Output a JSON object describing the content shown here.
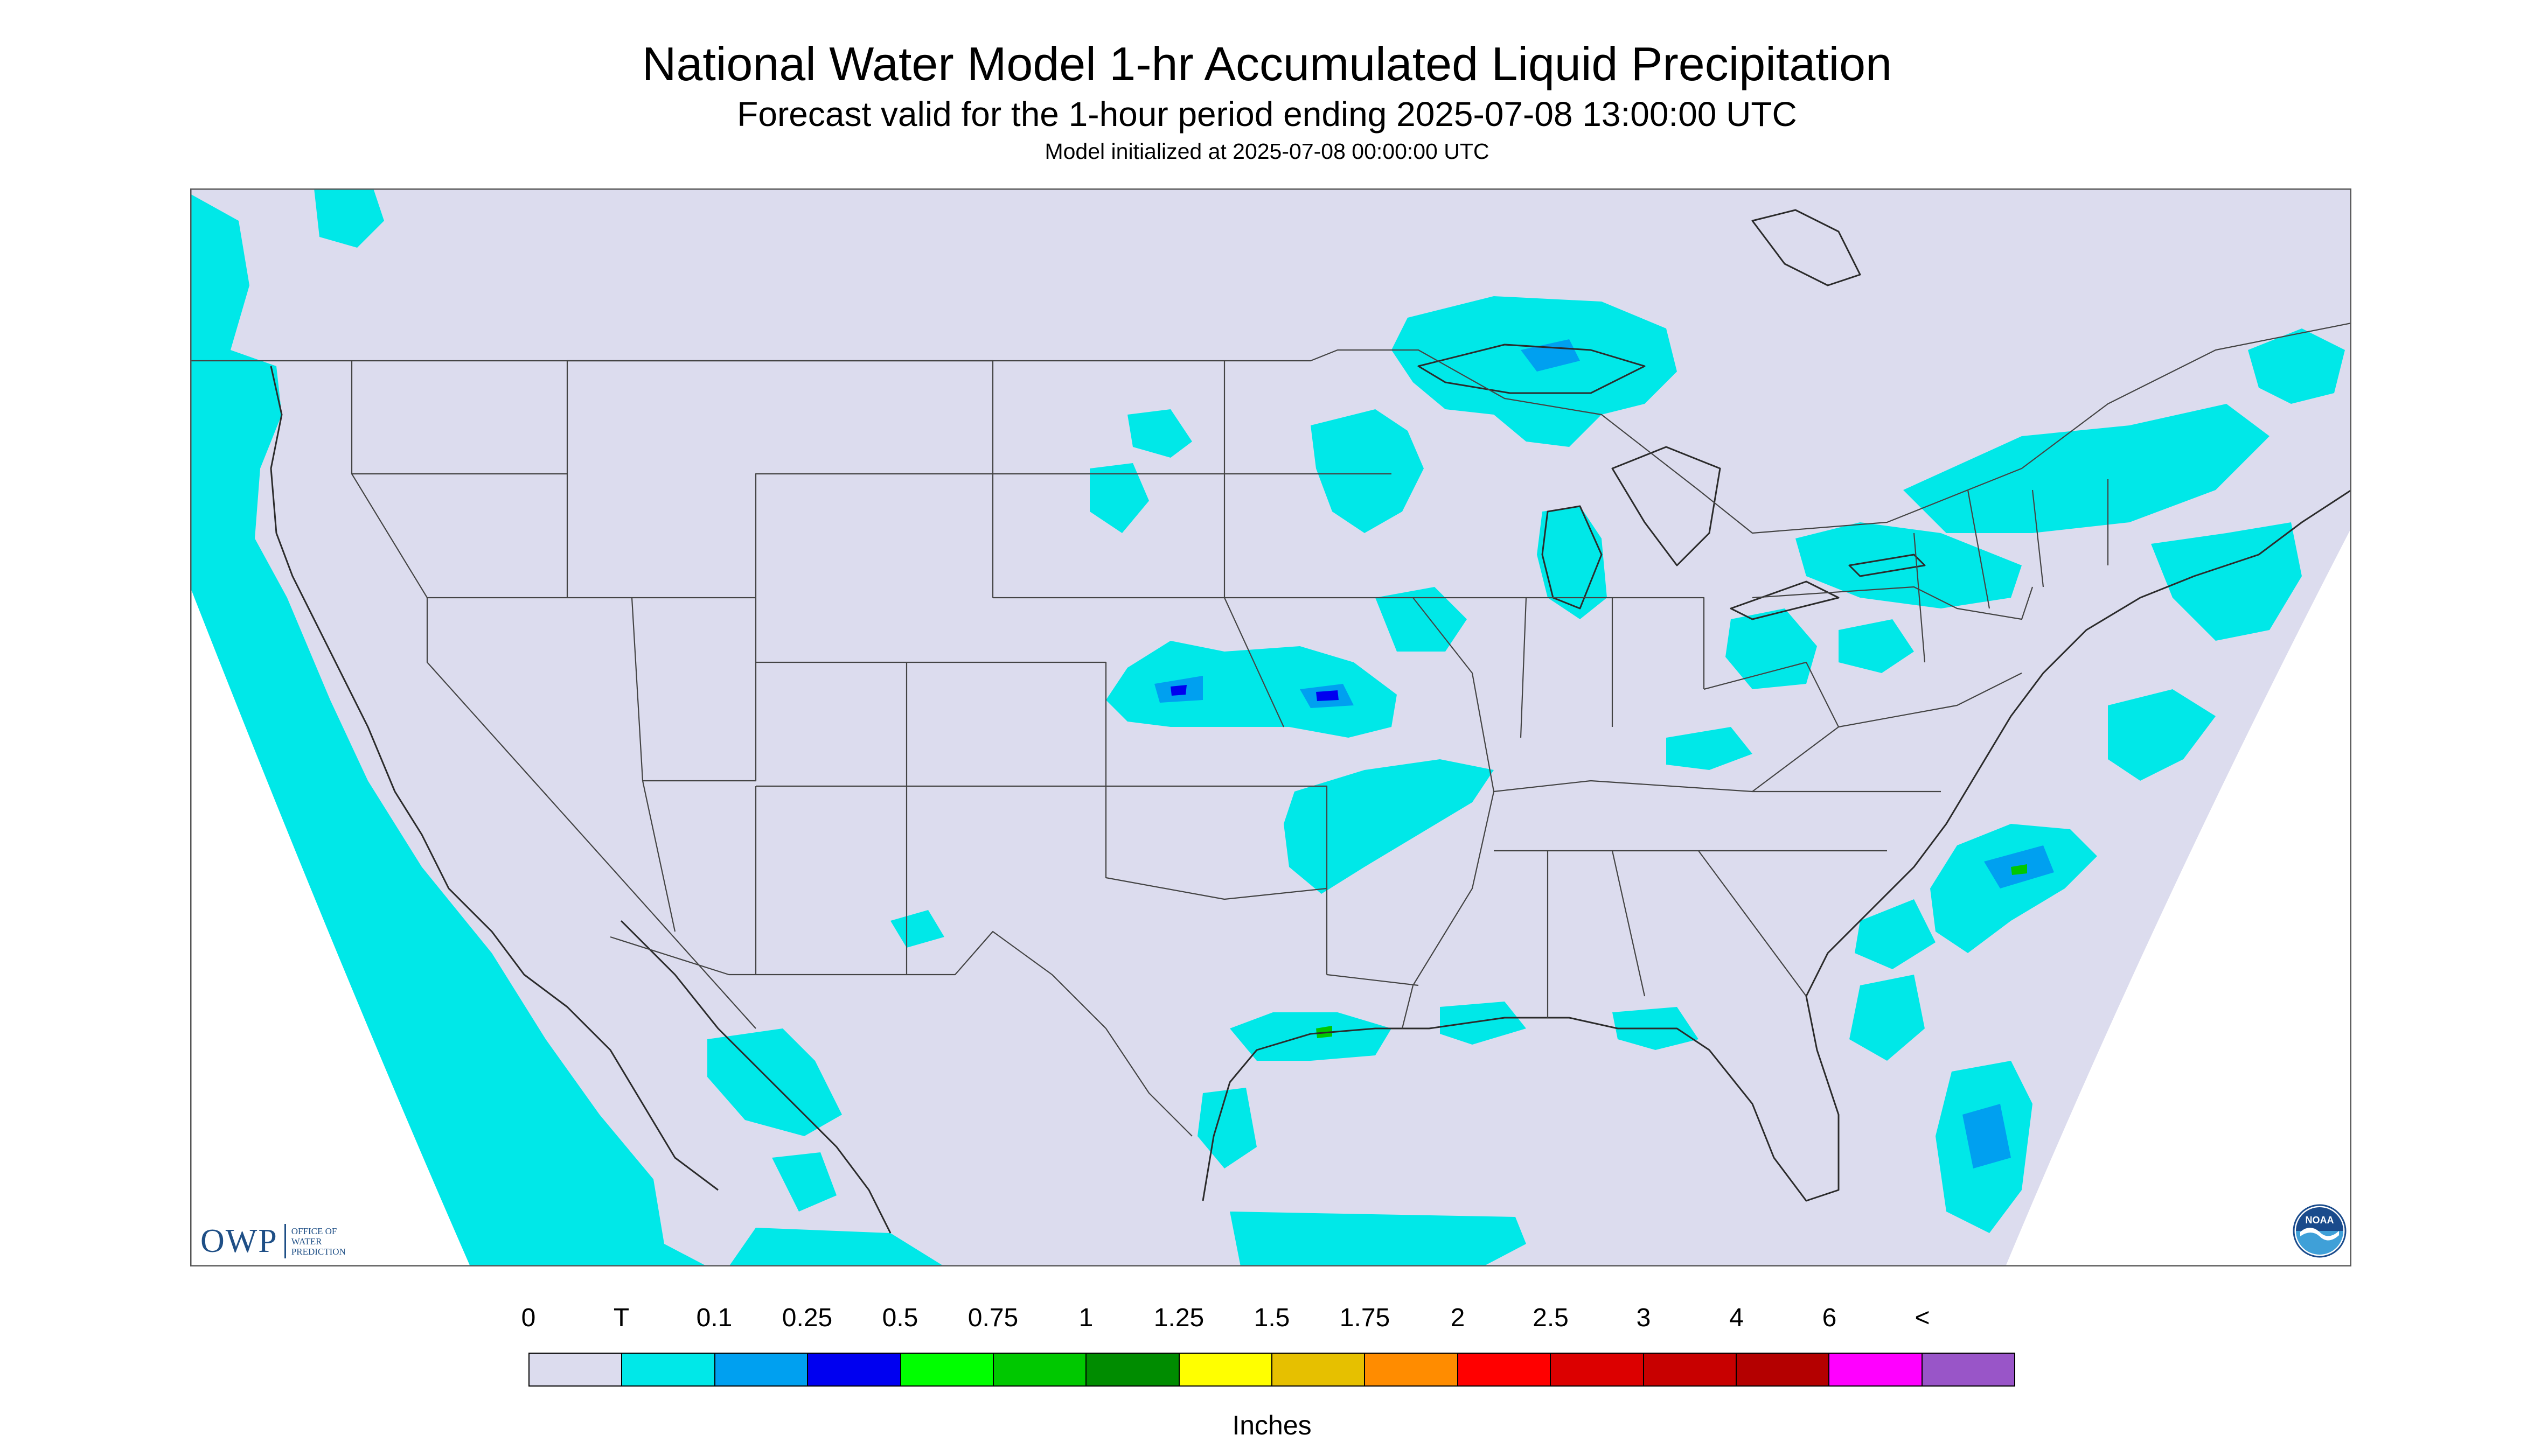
{
  "header": {
    "title": "National Water Model 1-hr Accumulated Liquid Precipitation",
    "subtitle": "Forecast valid for the 1-hour period ending 2025-07-08 13:00:00 UTC",
    "init_line": "Model initialized at 2025-07-08 00:00:00 UTC"
  },
  "map": {
    "background_color": "#dcdcee",
    "outline_color": "#333333",
    "offgrid_color": "#ffffff",
    "precip_fields": [
      {
        "region": "Pacific coastal waters (Washington to Baja California)",
        "category": "T"
      },
      {
        "region": "Upper Great Lakes / Lake Superior",
        "category": "T"
      },
      {
        "region": "Central Plains (Kansas, Missouri, Iowa)",
        "category": "0.1"
      },
      {
        "region": "Ozarks / Lower Mississippi Valley",
        "category": "T"
      },
      {
        "region": "Ohio Valley / Pennsylvania / New York",
        "category": "T"
      },
      {
        "region": "Gulf Coast (Texas, Louisiana)",
        "category": "0.25"
      },
      {
        "region": "Western Atlantic offshore",
        "category": "0.1"
      },
      {
        "region": "Northern Mexico",
        "category": "T"
      }
    ]
  },
  "logos": {
    "owp_mark": "OWP",
    "owp_lines": [
      "Office of",
      "Water",
      "Prediction"
    ],
    "noaa_text": "NOAA"
  },
  "legend": {
    "ticks": [
      "0",
      "T",
      "0.1",
      "0.25",
      "0.5",
      "0.75",
      "1",
      "1.25",
      "1.5",
      "1.75",
      "2",
      "2.5",
      "3",
      "4",
      "6",
      "<"
    ],
    "colors": [
      "#dcdcee",
      "#00e8e8",
      "#00a0f0",
      "#0000f0",
      "#00ff00",
      "#00c800",
      "#008c00",
      "#ffff00",
      "#e6c000",
      "#ff8c00",
      "#ff0000",
      "#dc0000",
      "#c80000",
      "#b40000",
      "#ff00ff",
      "#9955c8"
    ],
    "units": "Inches"
  }
}
